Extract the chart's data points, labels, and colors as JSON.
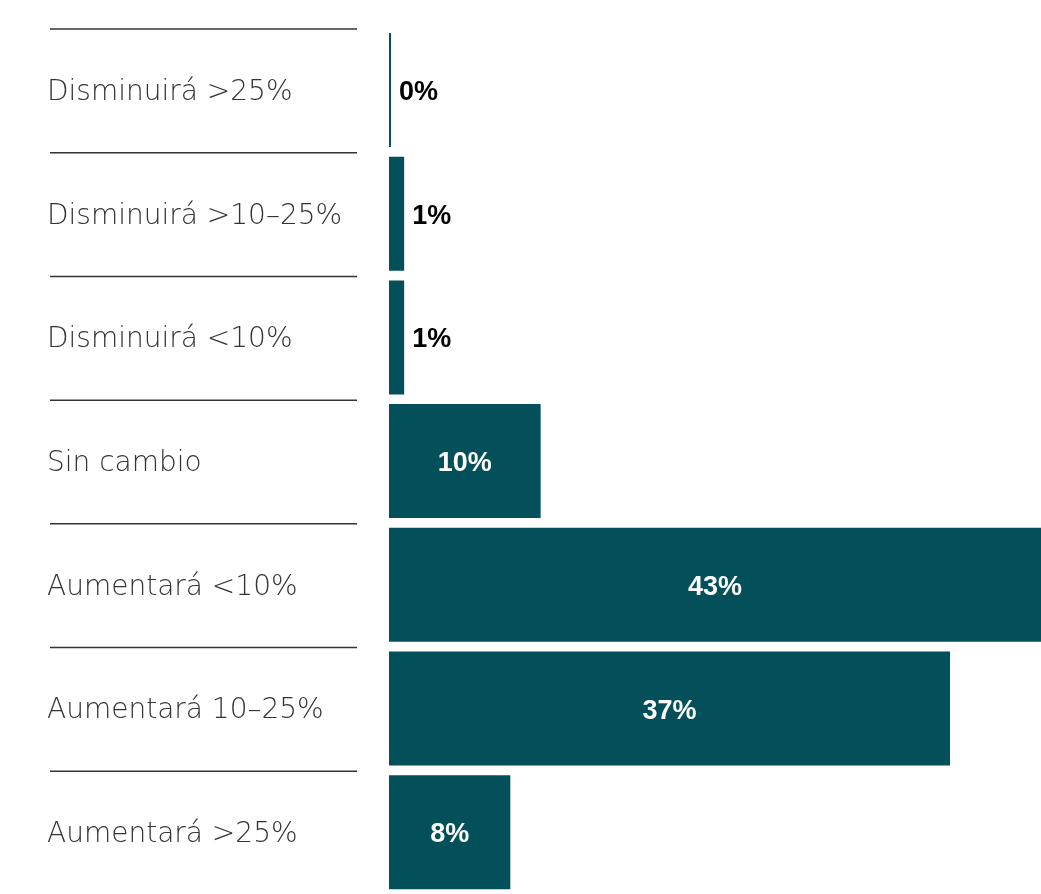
{
  "chart_data": {
    "type": "bar",
    "orientation": "horizontal",
    "categories": [
      "Disminuirá >25%",
      "Disminuirá >10–25%",
      "Disminuirá <10%",
      "Sin cambio",
      "Aumentará <10%",
      "Aumentará 10–25%",
      "Aumentará >25%"
    ],
    "values": [
      0,
      1,
      1,
      10,
      43,
      37,
      8
    ],
    "value_labels": [
      "0%",
      "1%",
      "1%",
      "10%",
      "43%",
      "37%",
      "8%"
    ],
    "color": "#03505a"
  }
}
